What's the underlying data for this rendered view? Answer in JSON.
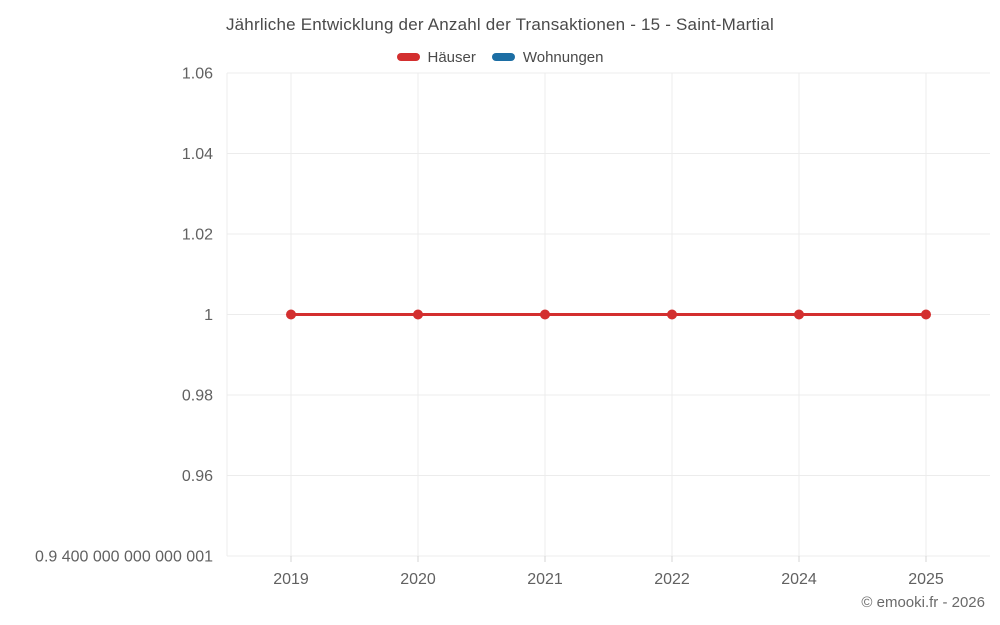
{
  "title": "Jährliche Entwicklung der Anzahl der Transaktionen - 15 - Saint-Martial",
  "legend": {
    "items": [
      {
        "label": "Häuser",
        "color": "#d32f2f"
      },
      {
        "label": "Wohnungen",
        "color": "#1c6ea4"
      }
    ]
  },
  "copyright": "© emooki.fr - 2026",
  "chart_data": {
    "type": "line",
    "title": "Jährliche Entwicklung der Anzahl der Transaktionen - 15 - Saint-Martial",
    "categories": [
      "2019",
      "2020",
      "2021",
      "2022",
      "2024",
      "2025"
    ],
    "series": [
      {
        "name": "Häuser",
        "color": "#d32f2f",
        "values": [
          1,
          1,
          1,
          1,
          1,
          1
        ]
      },
      {
        "name": "Wohnungen",
        "color": "#1c6ea4",
        "values": []
      }
    ],
    "xlabel": "",
    "ylabel": "",
    "ylim": [
      0.9400000000000001,
      1.06
    ],
    "y_ticks": [
      {
        "value": 1.06,
        "label": "1.06"
      },
      {
        "value": 1.04,
        "label": "1.04"
      },
      {
        "value": 1.02,
        "label": "1.02"
      },
      {
        "value": 1,
        "label": "1"
      },
      {
        "value": 0.98,
        "label": "0.98"
      },
      {
        "value": 0.96,
        "label": "0.96"
      },
      {
        "value": 0.9400000000000001,
        "label": "0.9 400 000 000 000 001"
      }
    ],
    "grid": true,
    "legend_position": "top",
    "colors": {
      "grid": "#ececec",
      "tick": "#d4d4d4",
      "axis_text": "#616161"
    }
  }
}
